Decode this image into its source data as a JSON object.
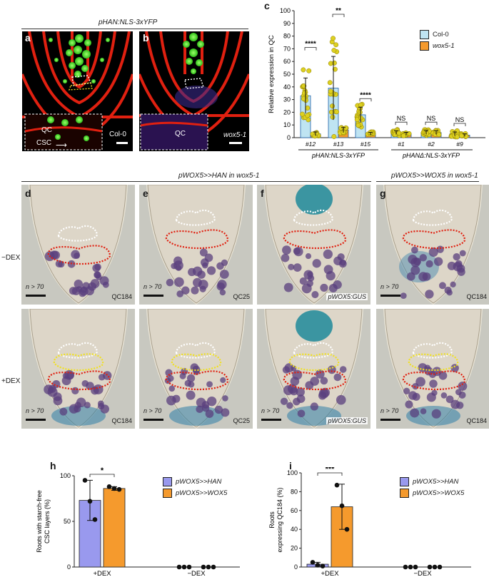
{
  "top_left": {
    "title": "pHAN:NLS-3xYFP",
    "panel_a": {
      "letter": "a",
      "genotype": "Col-0",
      "inset_qc": "QC",
      "inset_csc": "CSC"
    },
    "panel_b": {
      "letter": "b",
      "genotype": "wox5-1",
      "inset_qc": "QC"
    }
  },
  "panel_c": {
    "letter": "c",
    "legend": [
      {
        "name": "Col-0",
        "color": "#bfe4f2"
      },
      {
        "name": "wox5-1",
        "color": "#f59a2d"
      }
    ],
    "group1_label": "pHAN:NLS-3xYFP",
    "group2_label": "pHANΔ:NLS-3xYFP",
    "significance": [
      "****",
      "**",
      "****",
      "NS",
      "NS",
      "NS"
    ]
  },
  "chart_data": [
    {
      "id": "c",
      "type": "bar",
      "ylabel": "Relative expression in QC",
      "ylim": [
        0,
        100
      ],
      "yticks": [
        0,
        10,
        20,
        30,
        40,
        50,
        60,
        70,
        80,
        90,
        100
      ],
      "categories": [
        "#12",
        "#13",
        "#15",
        "#1",
        "#2",
        "#9"
      ],
      "series": [
        {
          "name": "Col-0",
          "values": [
            33,
            39,
            18,
            4,
            4,
            3
          ],
          "err": [
            14,
            25,
            6,
            1.5,
            1.5,
            1.5
          ]
        },
        {
          "name": "wox5-1",
          "values": [
            3,
            6,
            3,
            3,
            4,
            2
          ],
          "err": [
            1.5,
            2,
            1.2,
            1.2,
            1.5,
            1
          ]
        }
      ]
    },
    {
      "id": "h",
      "type": "bar",
      "ylabel": "Roots with starch-free CSC layers (%)",
      "ylim": [
        0,
        100
      ],
      "yticks": [
        0,
        50,
        100
      ],
      "categories": [
        "+DEX",
        "−DEX"
      ],
      "series": [
        {
          "name": "pWOX5>>HAN",
          "values": [
            73,
            0
          ],
          "err": [
            22,
            0
          ],
          "points": [
            [
              95,
              72,
              52
            ],
            [
              0,
              0,
              0
            ]
          ]
        },
        {
          "name": "pWOX5>>WOX5",
          "values": [
            86,
            0
          ],
          "err": [
            2,
            0
          ],
          "points": [
            [
              88,
              86,
              85
            ],
            [
              0,
              0,
              0
            ]
          ]
        }
      ],
      "significance": "*"
    },
    {
      "id": "i",
      "type": "bar",
      "ylabel": "Roots expressing QC184 (%)",
      "ylim": [
        0,
        100
      ],
      "yticks": [
        0,
        20,
        40,
        60,
        80,
        100
      ],
      "categories": [
        "+DEX",
        "−DEX"
      ],
      "series": [
        {
          "name": "pWOX5>>HAN",
          "values": [
            3,
            0
          ],
          "err": [
            2,
            0
          ],
          "points": [
            [
              5,
              2,
              1
            ],
            [
              0,
              0,
              0
            ]
          ]
        },
        {
          "name": "pWOX5>>WOX5",
          "values": [
            64,
            0
          ],
          "err": [
            24,
            0
          ],
          "points": [
            [
              87,
              65,
              40
            ],
            [
              0,
              0,
              0
            ]
          ]
        }
      ],
      "significance": "***"
    }
  ],
  "middle": {
    "title_left": "pWOX5>>HAN in wox5-1",
    "title_right": "pWOX5>>WOX5 in wox5-1",
    "row_labels": [
      "−DEX",
      "+DEX"
    ],
    "panels": [
      {
        "letter": "d",
        "n": "n > 70",
        "marker_top": "QC184",
        "marker_bottom": "QC184"
      },
      {
        "letter": "e",
        "n": "n > 70",
        "marker_top": "QC25",
        "marker_bottom": "QC25"
      },
      {
        "letter": "f",
        "n": "",
        "marker_top": "pWOX5:GUS",
        "marker_bottom": "pWOX5:GUS"
      },
      {
        "letter": "g",
        "n": "n > 70",
        "marker_top": "QC184",
        "marker_bottom": "QC184"
      }
    ],
    "n_bottom": "n > 70"
  },
  "panel_h": {
    "letter": "h",
    "legend": [
      {
        "name": "pWOX5>>HAN",
        "color": "#9999ee"
      },
      {
        "name": "pWOX5>>WOX5",
        "color": "#f59a2d"
      }
    ]
  },
  "panel_i": {
    "letter": "i",
    "legend": [
      {
        "name": "pWOX5>>HAN",
        "color": "#9999ee"
      },
      {
        "name": "pWOX5>>WOX5",
        "color": "#f59a2d"
      }
    ]
  }
}
